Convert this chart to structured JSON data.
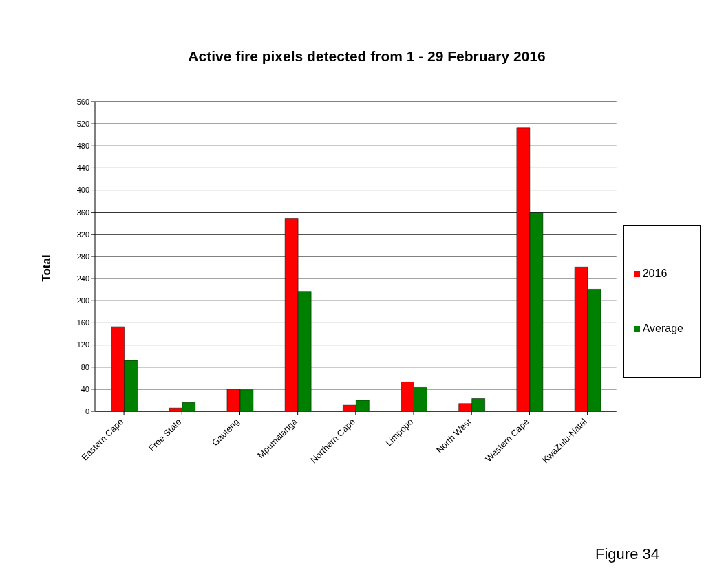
{
  "chart_data": {
    "type": "bar",
    "title": "Active fire pixels detected from 1 - 29 February 2016",
    "ylabel": "Total",
    "categories": [
      "Eastern Cape",
      "Free State",
      "Gauteng",
      "Mpumalanga",
      "Northern Cape",
      "Limpopo",
      "North West",
      "Western Cape",
      "KwaZulu-Natal"
    ],
    "series": [
      {
        "name": "2016",
        "color": "#ff0000",
        "values": [
          153,
          6,
          40,
          349,
          11,
          53,
          14,
          513,
          261
        ]
      },
      {
        "name": "Average",
        "color": "#008000",
        "values": [
          92,
          16,
          39,
          217,
          20,
          43,
          23,
          360,
          221
        ]
      }
    ],
    "ylim": [
      0,
      560
    ],
    "yticks": [
      0,
      40,
      80,
      120,
      160,
      200,
      240,
      280,
      320,
      360,
      400,
      440,
      480,
      520,
      560
    ],
    "grid": "y",
    "legend": "right",
    "annotations": [
      "Figure 34"
    ]
  }
}
